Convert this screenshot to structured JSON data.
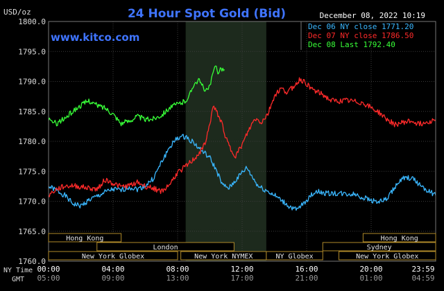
{
  "header": {
    "unit": "USD/oz",
    "title": "24 Hour Spot Gold (Bid)",
    "datetime": "December 08, 2022 10:19",
    "watermark": "www.kitco.com"
  },
  "colors": {
    "background": "#000000",
    "plot_bg": "#000000",
    "highlight": "#1d2a1d",
    "grid": "#555555",
    "title": "#3f74ff",
    "text": "#dddddd",
    "dec06": "#3ab7ff",
    "dec07": "#ff2a2a",
    "dec08": "#38ff38",
    "session_box": "#b08a2a"
  },
  "legend": [
    {
      "label": "Dec 06 NY close 1771.20",
      "color": "#3ab7ff"
    },
    {
      "label": "Dec 07 NY close 1786.50",
      "color": "#ff2a2a"
    },
    {
      "label": "Dec 08 Last 1792.40",
      "color": "#38ff38"
    }
  ],
  "time_axis": {
    "ny_label": "NY Time",
    "gmt_label": "GMT",
    "ny_ticks": [
      "00:00",
      "04:00",
      "08:00",
      "12:00",
      "16:00",
      "20:00",
      "23:59"
    ],
    "gmt_ticks": [
      "05:00",
      "09:00",
      "13:00",
      "17:00",
      "21:00",
      "01:00",
      "04:59"
    ]
  },
  "sessions": [
    {
      "name": "Hong Kong",
      "start": 0,
      "end": 4.5,
      "row": 0
    },
    {
      "name": "London",
      "start": 3,
      "end": 11.5,
      "row": 1
    },
    {
      "name": "New York Globex",
      "start": 0,
      "end": 8,
      "row": 2
    },
    {
      "name": "New York NYMEX",
      "start": 8.2,
      "end": 13.5,
      "row": 2
    },
    {
      "name": "NY Globex",
      "start": 13.5,
      "end": 17,
      "row": 2
    },
    {
      "name": "Hong Kong",
      "start": 19.5,
      "end": 24,
      "row": 0
    },
    {
      "name": "Sydney",
      "start": 17,
      "end": 24,
      "row": 1
    },
    {
      "name": "New York Globex",
      "start": 18,
      "end": 24,
      "row": 2
    }
  ],
  "chart_data": {
    "type": "line",
    "title": "24 Hour Spot Gold (Bid)",
    "ylabel": "USD/oz",
    "ylim": [
      1760,
      1800
    ],
    "yticks": [
      "1760.0",
      "1765.0",
      "1770.0",
      "1775.0",
      "1780.0",
      "1785.0",
      "1790.0",
      "1795.0",
      "1800.0"
    ],
    "xlim": [
      0,
      24
    ],
    "x_unit": "hours (NY time)",
    "highlight_range": [
      8.5,
      13.5
    ],
    "grid": true,
    "legend_position": "top-right",
    "series": [
      {
        "name": "Dec 06 NY close 1771.20",
        "color": "#3ab7ff",
        "points": [
          [
            0,
            1772.5
          ],
          [
            0.5,
            1771.8
          ],
          [
            1,
            1771.0
          ],
          [
            1.5,
            1769.6
          ],
          [
            2,
            1769.2
          ],
          [
            2.5,
            1770.2
          ],
          [
            3,
            1770.8
          ],
          [
            3.5,
            1771.5
          ],
          [
            4,
            1772.0
          ],
          [
            4.5,
            1771.8
          ],
          [
            5,
            1772.4
          ],
          [
            5.5,
            1772.0
          ],
          [
            6,
            1772.6
          ],
          [
            6.5,
            1773.8
          ],
          [
            7,
            1776.5
          ],
          [
            7.5,
            1779.0
          ],
          [
            8,
            1780.6
          ],
          [
            8.5,
            1780.8
          ],
          [
            9,
            1779.8
          ],
          [
            9.3,
            1778.9
          ],
          [
            9.6,
            1778.2
          ],
          [
            10,
            1777.2
          ],
          [
            10.4,
            1775.2
          ],
          [
            10.8,
            1772.6
          ],
          [
            11.2,
            1772.2
          ],
          [
            11.6,
            1773.5
          ],
          [
            12,
            1774.8
          ],
          [
            12.3,
            1775.6
          ],
          [
            12.6,
            1774.2
          ],
          [
            13,
            1772.5
          ],
          [
            13.5,
            1771.8
          ],
          [
            14,
            1771.0
          ],
          [
            14.5,
            1770.0
          ],
          [
            15,
            1769.0
          ],
          [
            15.4,
            1768.5
          ],
          [
            15.8,
            1769.6
          ],
          [
            16.2,
            1770.8
          ],
          [
            16.6,
            1771.7
          ],
          [
            17,
            1771.4
          ],
          [
            17.5,
            1771.3
          ],
          [
            18,
            1771.3
          ],
          [
            18.5,
            1771.2
          ],
          [
            19,
            1771.2
          ],
          [
            19.5,
            1770.6
          ],
          [
            20,
            1770.2
          ],
          [
            20.5,
            1769.9
          ],
          [
            21,
            1770.4
          ],
          [
            21.5,
            1772.5
          ],
          [
            22,
            1773.8
          ],
          [
            22.5,
            1773.9
          ],
          [
            23,
            1772.8
          ],
          [
            23.5,
            1771.8
          ],
          [
            24,
            1771.0
          ]
        ]
      },
      {
        "name": "Dec 07 NY close 1786.50",
        "color": "#ff2a2a",
        "points": [
          [
            0,
            1771.0
          ],
          [
            0.5,
            1772.0
          ],
          [
            1,
            1772.5
          ],
          [
            1.5,
            1772.6
          ],
          [
            2,
            1772.4
          ],
          [
            2.5,
            1772.2
          ],
          [
            3,
            1772.0
          ],
          [
            3.5,
            1773.6
          ],
          [
            4,
            1773.0
          ],
          [
            4.5,
            1772.4
          ],
          [
            5,
            1772.6
          ],
          [
            5.5,
            1773.2
          ],
          [
            6,
            1772.5
          ],
          [
            6.5,
            1772.2
          ],
          [
            7,
            1771.6
          ],
          [
            7.5,
            1772.8
          ],
          [
            8,
            1774.8
          ],
          [
            8.5,
            1775.8
          ],
          [
            9,
            1777.0
          ],
          [
            9.5,
            1778.5
          ],
          [
            9.8,
            1780.5
          ],
          [
            10,
            1783.0
          ],
          [
            10.2,
            1785.8
          ],
          [
            10.5,
            1784.5
          ],
          [
            10.8,
            1782.6
          ],
          [
            11,
            1780.5
          ],
          [
            11.3,
            1778.6
          ],
          [
            11.6,
            1777.6
          ],
          [
            12,
            1779.4
          ],
          [
            12.4,
            1781.8
          ],
          [
            12.8,
            1783.8
          ],
          [
            13.2,
            1783.2
          ],
          [
            13.6,
            1784.6
          ],
          [
            14,
            1787.6
          ],
          [
            14.4,
            1788.8
          ],
          [
            14.8,
            1788.2
          ],
          [
            15.2,
            1789.2
          ],
          [
            15.6,
            1790.4
          ],
          [
            16,
            1789.6
          ],
          [
            16.5,
            1788.4
          ],
          [
            17,
            1787.8
          ],
          [
            17.5,
            1786.8
          ],
          [
            18,
            1786.7
          ],
          [
            18.5,
            1786.8
          ],
          [
            19,
            1786.6
          ],
          [
            19.5,
            1786.4
          ],
          [
            20,
            1785.6
          ],
          [
            20.5,
            1784.8
          ],
          [
            21,
            1783.6
          ],
          [
            21.5,
            1782.8
          ],
          [
            22,
            1783.2
          ],
          [
            22.5,
            1783.4
          ],
          [
            23,
            1782.9
          ],
          [
            23.5,
            1783.3
          ],
          [
            24,
            1783.6
          ]
        ]
      },
      {
        "name": "Dec 08 Last 1792.40",
        "color": "#38ff38",
        "points": [
          [
            0,
            1783.5
          ],
          [
            0.5,
            1783.0
          ],
          [
            1,
            1783.8
          ],
          [
            1.5,
            1785.0
          ],
          [
            2,
            1786.0
          ],
          [
            2.5,
            1786.8
          ],
          [
            3,
            1786.0
          ],
          [
            3.5,
            1785.6
          ],
          [
            4,
            1784.6
          ],
          [
            4.5,
            1783.0
          ],
          [
            5,
            1783.4
          ],
          [
            5.5,
            1784.2
          ],
          [
            6,
            1783.6
          ],
          [
            6.5,
            1783.8
          ],
          [
            7,
            1784.4
          ],
          [
            7.5,
            1785.6
          ],
          [
            8,
            1786.2
          ],
          [
            8.4,
            1786.6
          ],
          [
            8.7,
            1787.4
          ],
          [
            9,
            1789.6
          ],
          [
            9.3,
            1790.2
          ],
          [
            9.6,
            1789.0
          ],
          [
            9.8,
            1788.4
          ],
          [
            10,
            1789.2
          ],
          [
            10.2,
            1791.2
          ],
          [
            10.35,
            1792.8
          ],
          [
            10.5,
            1791.6
          ],
          [
            10.7,
            1792.2
          ],
          [
            10.9,
            1792.0
          ]
        ]
      }
    ]
  }
}
